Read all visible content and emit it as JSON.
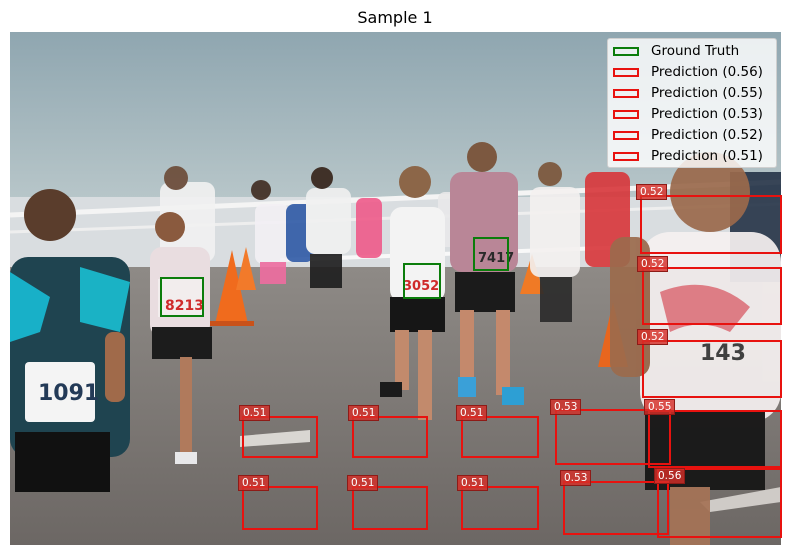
{
  "title": "Sample 1",
  "legend": [
    {
      "label": "Ground Truth",
      "color": "#0b7d0b"
    },
    {
      "label": "Prediction (0.56)",
      "color": "#e8120f"
    },
    {
      "label": "Prediction (0.55)",
      "color": "#e8120f"
    },
    {
      "label": "Prediction (0.53)",
      "color": "#e8120f"
    },
    {
      "label": "Prediction (0.52)",
      "color": "#e8120f"
    },
    {
      "label": "Prediction (0.51)",
      "color": "#e8120f"
    }
  ],
  "bib_numbers": [
    "1091",
    "8213",
    "3052",
    "7417",
    "143"
  ],
  "score_labels": {
    "p052a": "0.52",
    "p052b": "0.52",
    "p052c": "0.52",
    "p051a": "0.51",
    "p051b": "0.51",
    "p051c": "0.51",
    "p051d": "0.51",
    "p051e": "0.51",
    "p051f": "0.51",
    "p053a": "0.53",
    "p053b": "0.53",
    "p055": "0.55",
    "p056": "0.56"
  },
  "colors": {
    "prediction": "#e8120f",
    "ground_truth": "#0b7d0b"
  }
}
